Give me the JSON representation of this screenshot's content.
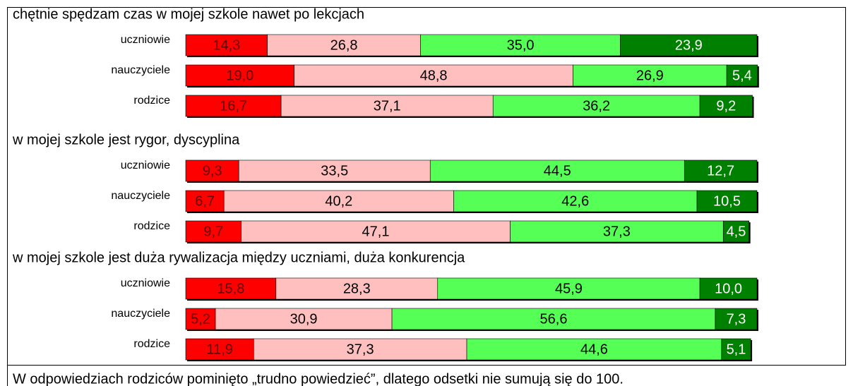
{
  "chart_data": [
    {
      "type": "stacked-bar-horizontal",
      "title": "chętnie spędzam czas w mojej szkole nawet po lekcjach",
      "categories": [
        "uczniowie",
        "nauczyciele",
        "rodzice"
      ],
      "xlim": [
        0,
        100
      ],
      "series": [
        {
          "color": "#ff0000",
          "values": [
            14.3,
            19.0,
            16.7
          ],
          "value_labels": [
            "14,3",
            "19,0",
            "16,7"
          ]
        },
        {
          "color": "#ffbfbf",
          "values": [
            26.8,
            48.8,
            37.1
          ],
          "value_labels": [
            "26,8",
            "48,8",
            "37,1"
          ]
        },
        {
          "color": "#55ff55",
          "values": [
            35.0,
            26.9,
            36.2
          ],
          "value_labels": [
            "35,0",
            "26,9",
            "36,2"
          ]
        },
        {
          "color": "#008000",
          "values": [
            23.9,
            5.4,
            9.2
          ],
          "value_labels": [
            "23,9",
            "5,4",
            "9,2"
          ]
        }
      ]
    },
    {
      "type": "stacked-bar-horizontal",
      "title": "w mojej szkole jest rygor, dyscyplina",
      "categories": [
        "uczniowie",
        "nauczyciele",
        "rodzice"
      ],
      "xlim": [
        0,
        100
      ],
      "series": [
        {
          "color": "#ff0000",
          "values": [
            9.3,
            6.7,
            9.7
          ],
          "value_labels": [
            "9,3",
            "6,7",
            "9,7"
          ]
        },
        {
          "color": "#ffbfbf",
          "values": [
            33.5,
            40.2,
            47.1
          ],
          "value_labels": [
            "33,5",
            "40,2",
            "47,1"
          ]
        },
        {
          "color": "#55ff55",
          "values": [
            44.5,
            42.6,
            37.3
          ],
          "value_labels": [
            "44,5",
            "42,6",
            "37,3"
          ]
        },
        {
          "color": "#008000",
          "values": [
            12.7,
            10.5,
            4.5
          ],
          "value_labels": [
            "12,7",
            "10,5",
            "4,5"
          ]
        }
      ]
    },
    {
      "type": "stacked-bar-horizontal",
      "title": "w mojej szkole jest duża rywalizacja między uczniami, duża konkurencja",
      "categories": [
        "uczniowie",
        "nauczyciele",
        "rodzice"
      ],
      "xlim": [
        0,
        100
      ],
      "series": [
        {
          "color": "#ff0000",
          "values": [
            15.8,
            5.2,
            11.9
          ],
          "value_labels": [
            "15,8",
            "5,2",
            "11,9"
          ]
        },
        {
          "color": "#ffbfbf",
          "values": [
            28.3,
            30.9,
            37.3
          ],
          "value_labels": [
            "28,3",
            "30,9",
            "37,3"
          ]
        },
        {
          "color": "#55ff55",
          "values": [
            45.9,
            56.6,
            44.6
          ],
          "value_labels": [
            "45,9",
            "56,6",
            "44,6"
          ]
        },
        {
          "color": "#008000",
          "values": [
            10.0,
            7.3,
            5.1
          ],
          "value_labels": [
            "10,0",
            "7,3",
            "5,1"
          ]
        }
      ]
    }
  ],
  "note": "W odpowiedziach rodziców pominięto „trudno powiedzieć”, dlatego odsetki nie sumują się do 100."
}
